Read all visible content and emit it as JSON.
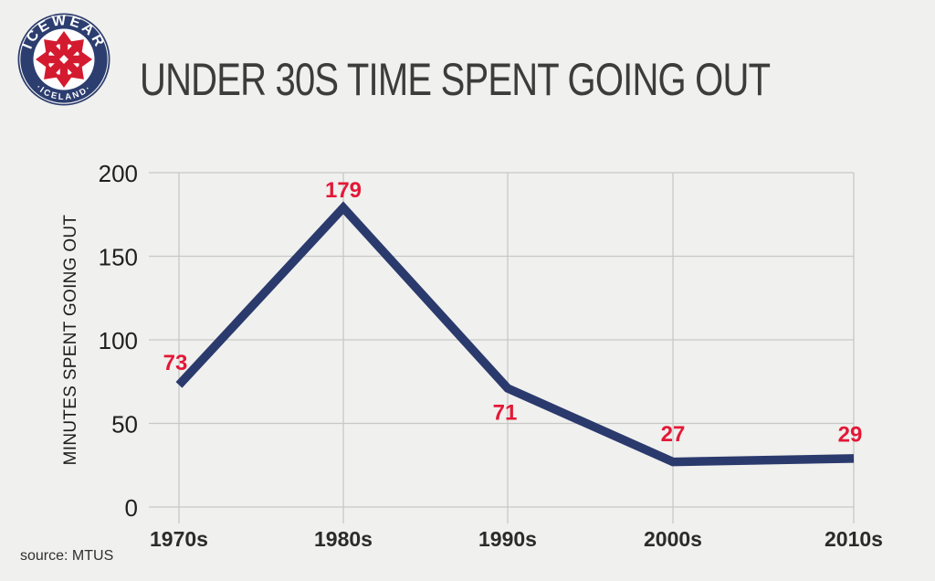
{
  "logo": {
    "top_text": "ICEWEAR",
    "bottom_text": "·ICELAND·",
    "ring_color": "#2c3d6f",
    "snowflake_color": "#d41a2f"
  },
  "footer": {
    "source": "source: MTUS"
  },
  "colors": {
    "background": "#f0f0ee",
    "grid": "#c8c8c7",
    "axis_tick_text": "#1f1f1f",
    "x_label_text": "#2b2b2b",
    "title_text": "#3c3c3c",
    "line": "#2b3a6d",
    "data_label": "#e31837"
  },
  "chart_data": {
    "type": "line",
    "title": "UNDER 30S TIME SPENT GOING OUT",
    "categories": [
      "1970s",
      "1980s",
      "1990s",
      "2000s",
      "2010s"
    ],
    "values": [
      73,
      179,
      71,
      27,
      29
    ],
    "data_labels": [
      "73",
      "179",
      "71",
      "27",
      "29"
    ],
    "xlabel": "",
    "ylabel": "MINUTES SPENT GOING OUT",
    "ylim": [
      0,
      200
    ],
    "yticks": [
      0,
      50,
      100,
      150,
      200
    ],
    "grid": true,
    "legend": false,
    "line_color": "#2b3a6d",
    "data_label_color": "#e31837"
  }
}
